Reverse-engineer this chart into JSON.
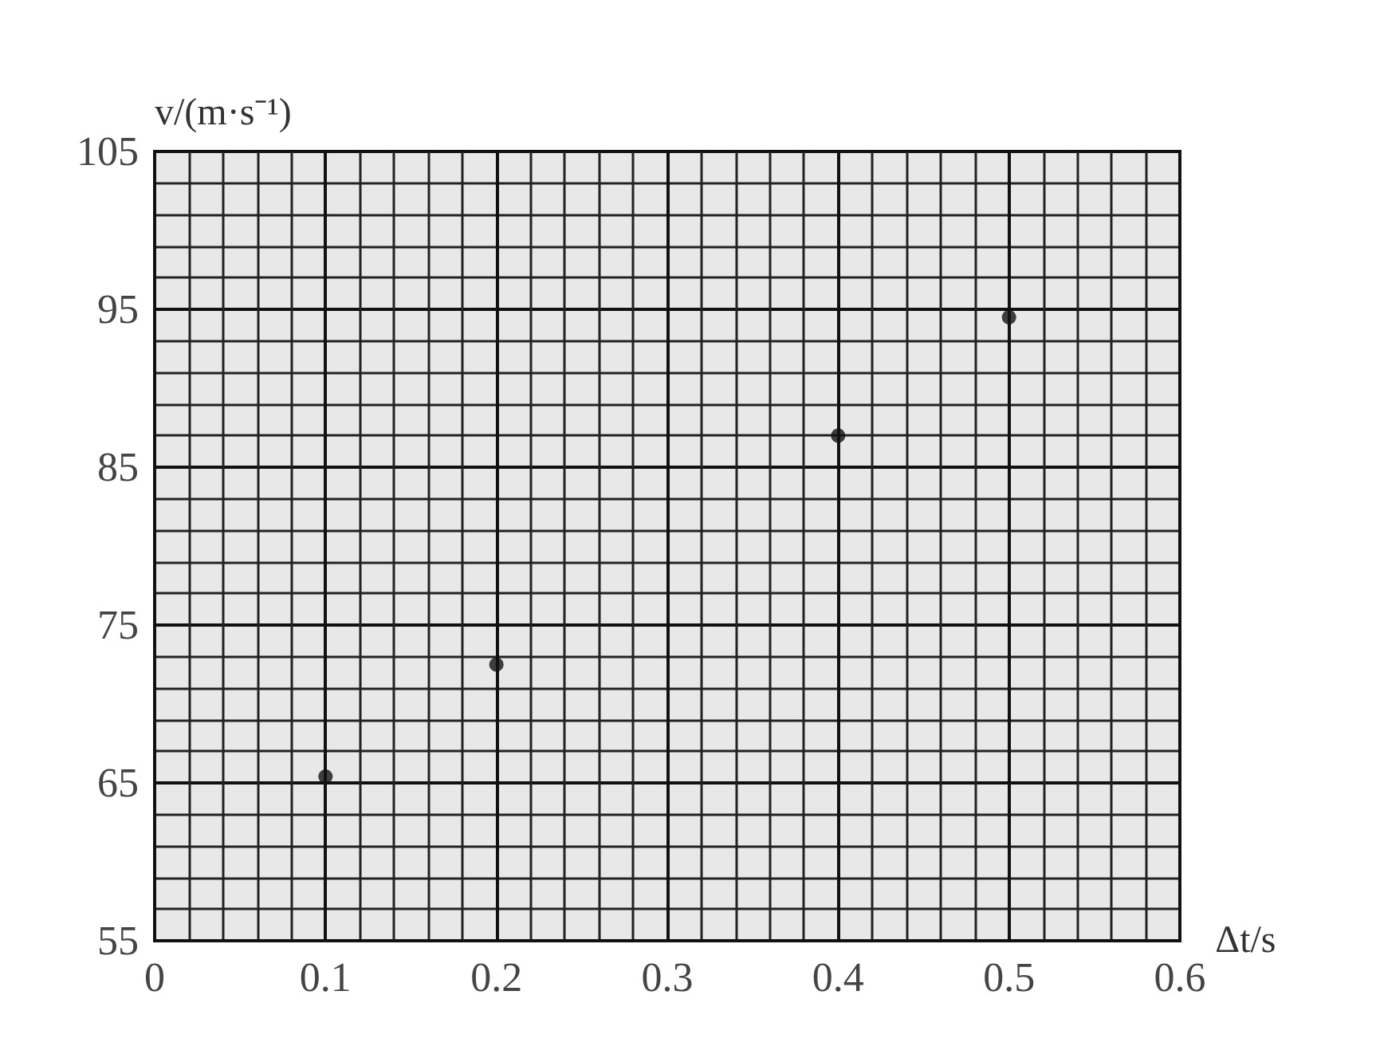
{
  "chart_data": {
    "type": "scatter",
    "x": [
      0.1,
      0.2,
      0.4,
      0.5
    ],
    "values": [
      65.4,
      72.5,
      87.0,
      94.5
    ],
    "color": "#111111",
    "xlim": [
      0,
      0.6
    ],
    "xticks": [
      0,
      0.1,
      0.2,
      0.3,
      0.4,
      0.5,
      0.6
    ],
    "ylim": [
      55,
      105
    ],
    "yticks": [
      55,
      65,
      75,
      85,
      95,
      105
    ],
    "xlabel": "Δt/s",
    "ylabel": "v/(m·s⁻¹)",
    "grid": true,
    "marker": "circle"
  }
}
